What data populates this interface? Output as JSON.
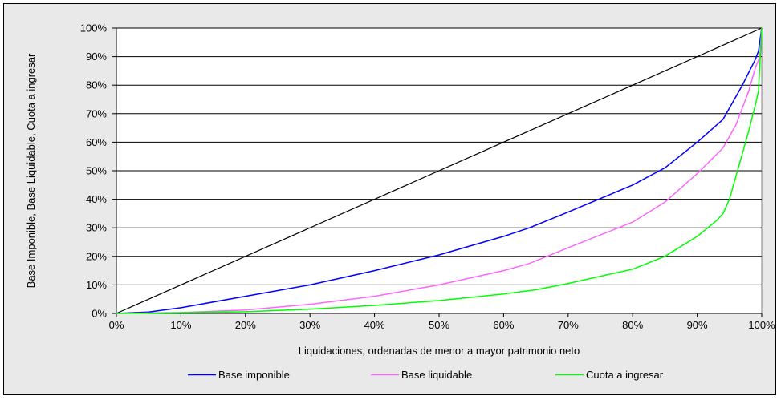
{
  "chart_data": {
    "type": "line",
    "xlabel": "Liquidaciones, ordenadas de menor a mayor patrimonio neto",
    "ylabel": "Base Imponible, Base Liquidable, Cuota a ingresar",
    "xlim": [
      0,
      100
    ],
    "ylim": [
      0,
      100
    ],
    "x_ticks": [
      "0%",
      "10%",
      "20%",
      "30%",
      "40%",
      "50%",
      "60%",
      "70%",
      "80%",
      "90%",
      "100%"
    ],
    "y_ticks": [
      "0%",
      "10%",
      "20%",
      "30%",
      "40%",
      "50%",
      "60%",
      "70%",
      "80%",
      "90%",
      "100%"
    ],
    "grid": "horizontal",
    "legend_position": "bottom",
    "plot_background": "#ffffff",
    "chart_background": "#e9e9e9",
    "equality_line": {
      "color": "#000000",
      "x": [
        0,
        100
      ],
      "y": [
        0,
        100
      ]
    },
    "series": [
      {
        "name": "Base imponible",
        "color": "#0000ff",
        "x": [
          0,
          5,
          10,
          20,
          30,
          40,
          50,
          60,
          64,
          70,
          80,
          85,
          90,
          94,
          97,
          99,
          99.5,
          100
        ],
        "y": [
          0,
          0.5,
          2,
          6,
          10,
          15,
          20.5,
          27,
          30,
          35.5,
          45,
          51,
          60,
          68,
          80,
          89,
          92,
          100
        ]
      },
      {
        "name": "Base liquidable",
        "color": "#ff66ff",
        "x": [
          0,
          10,
          20,
          30,
          40,
          50,
          60,
          64,
          70,
          80,
          85,
          90,
          94,
          96,
          98,
          99,
          99.7,
          100
        ],
        "y": [
          0,
          0.3,
          1.2,
          3.2,
          6,
          10,
          15,
          17.5,
          23,
          32,
          39,
          49,
          58,
          66,
          78,
          86,
          90,
          100
        ]
      },
      {
        "name": "Cuota a ingresar",
        "color": "#00ff00",
        "x": [
          0,
          10,
          20,
          30,
          40,
          50,
          60,
          65,
          70,
          80,
          85,
          90,
          93,
          94,
          95,
          96,
          97,
          98,
          99,
          99.5,
          100
        ],
        "y": [
          0,
          0.2,
          0.6,
          1.5,
          2.8,
          4.5,
          6.8,
          8.3,
          10.5,
          15.5,
          20,
          27,
          32.5,
          35,
          40,
          48,
          56,
          64,
          73,
          78,
          100
        ]
      }
    ]
  }
}
